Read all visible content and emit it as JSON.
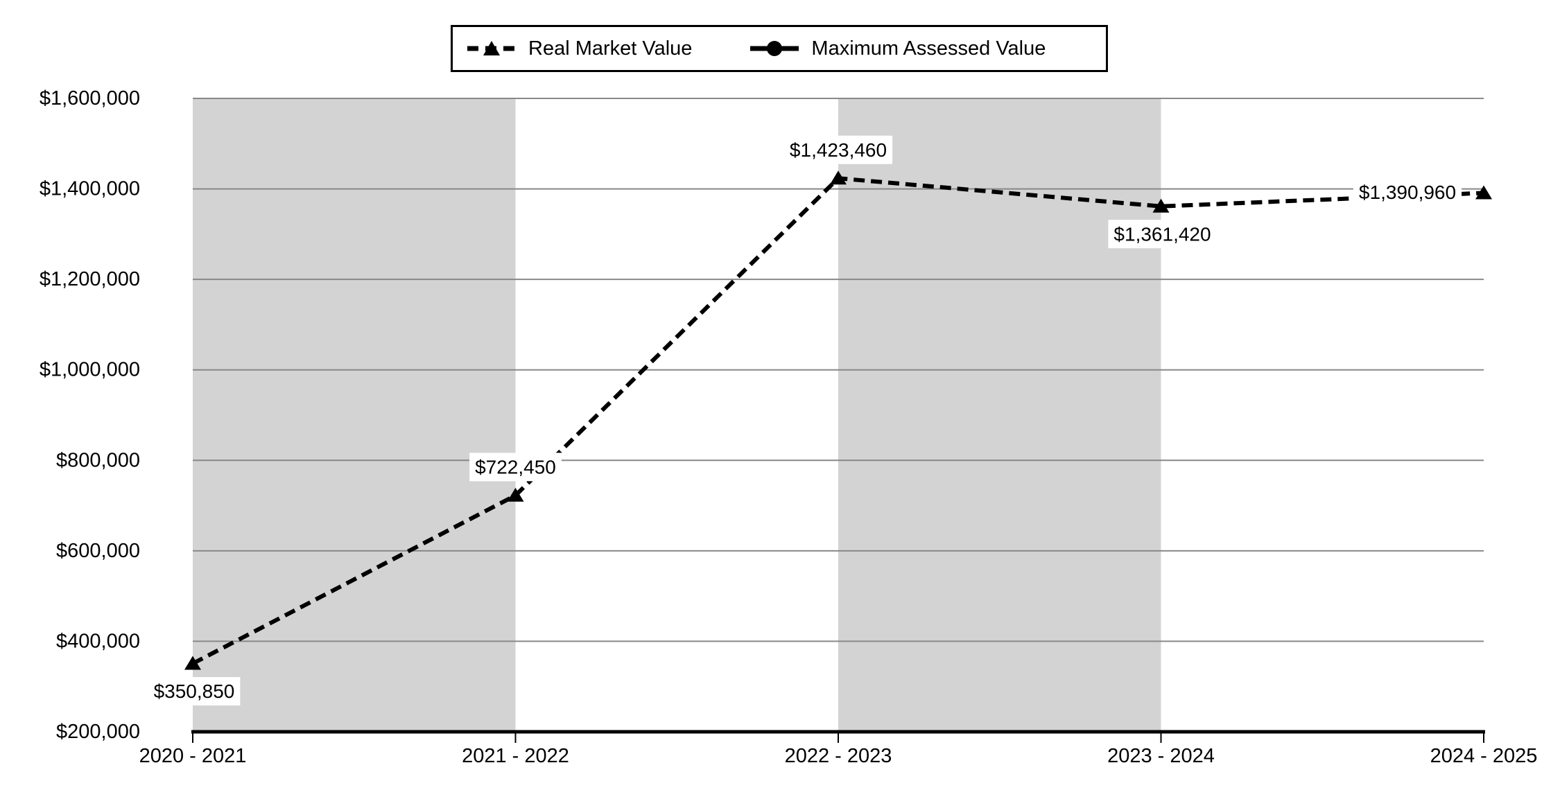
{
  "colors": {
    "background": "#ffffff",
    "plot_band": "#d3d3d3",
    "gridline": "#888888",
    "axis": "#000000",
    "series_line": "#000000",
    "data_label_background": "#ffffff",
    "text": "#000000"
  },
  "legend": {
    "items": [
      {
        "label": "Real Market Value",
        "icon": "dashed-line-triangle-icon"
      },
      {
        "label": "Maximum Assessed Value",
        "icon": "solid-line-circle-icon"
      }
    ]
  },
  "chart_data": {
    "type": "line",
    "categories": [
      "2020 - 2021",
      "2021 - 2022",
      "2022 - 2023",
      "2023 - 2024",
      "2024 - 2025"
    ],
    "series": [
      {
        "name": "Real Market Value",
        "line_style": "dashed",
        "marker": "triangle",
        "values": [
          350850,
          722450,
          1423460,
          1361420,
          1390960
        ],
        "data_labels": [
          "$350,850",
          "$722,450",
          "$1,423,460",
          "$1,361,420",
          "$1,390,960"
        ],
        "data_label_anchors": [
          "below",
          "above",
          "above",
          "below",
          "left"
        ]
      },
      {
        "name": "Maximum Assessed Value",
        "line_style": "solid",
        "marker": "circle",
        "values": [],
        "data_labels": [],
        "data_label_anchors": []
      }
    ],
    "ylim": [
      200000,
      1600000
    ],
    "ytick_step": 200000,
    "ytick_labels": [
      "$200,000",
      "$400,000",
      "$600,000",
      "$800,000",
      "$1,000,000",
      "$1,200,000",
      "$1,400,000",
      "$1,600,000"
    ],
    "grid": true,
    "legend_position": "top-center",
    "plot_bands": {
      "category_spans": [
        0,
        2
      ]
    }
  }
}
